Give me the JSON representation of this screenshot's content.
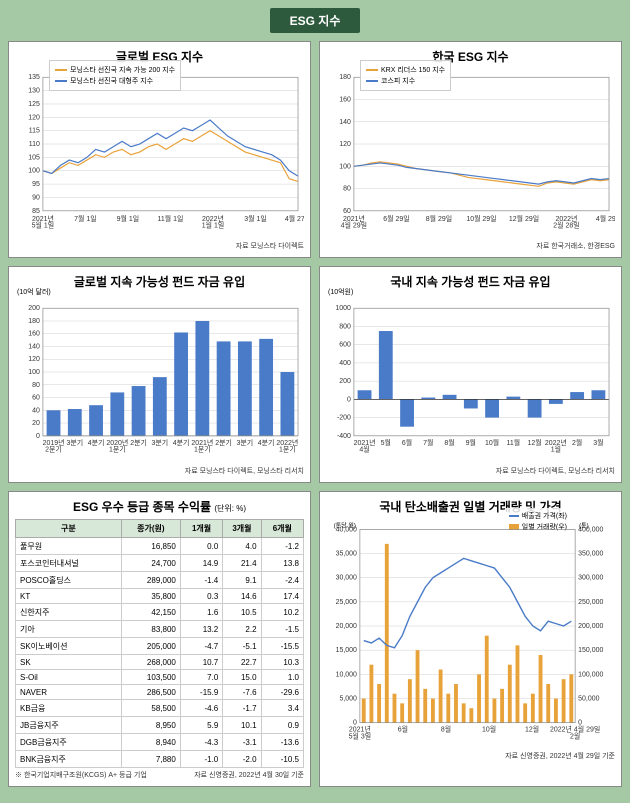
{
  "header": {
    "title": "ESG 지수"
  },
  "global_esg": {
    "title": "글로벌 ESG 지수",
    "type": "line",
    "ylim": [
      85,
      135
    ],
    "ytick_step": 5,
    "xlabels": [
      "2021년\n5월 1일",
      "7월 1일",
      "9월 1일",
      "11월 1일",
      "2022년\n1월 1일",
      "3월 1일",
      "4월 27일"
    ],
    "series": [
      {
        "name": "모닝스타 선진국 지속 가능 200 지수",
        "color": "#e8a23a",
        "values": [
          100,
          99,
          101,
          103,
          102,
          104,
          106,
          105,
          107,
          108,
          106,
          107,
          109,
          110,
          108,
          110,
          112,
          111,
          113,
          115,
          113,
          111,
          109,
          107,
          106,
          105,
          104,
          103,
          97,
          96
        ]
      },
      {
        "name": "모닝스타 선진국 대형주 지수",
        "color": "#4a7bc8",
        "values": [
          100,
          99,
          102,
          104,
          103,
          105,
          108,
          107,
          109,
          111,
          109,
          110,
          112,
          114,
          112,
          114,
          116,
          115,
          117,
          119,
          116,
          113,
          111,
          109,
          108,
          107,
          106,
          104,
          100,
          98
        ]
      }
    ],
    "source": "자료 모닝스타 다이렉트",
    "grid_color": "#d0d0d0",
    "background_color": "#ffffff"
  },
  "korea_esg": {
    "title": "한국 ESG 지수",
    "type": "line",
    "ylim": [
      60,
      180
    ],
    "ytick_step": 20,
    "xlabels": [
      "2021년\n4월 29일",
      "6월 29일",
      "8월 29일",
      "10월 29일",
      "12월 29일",
      "2022년\n2월 28일",
      "4월 29일"
    ],
    "series": [
      {
        "name": "KRX 리더스 150 지수",
        "color": "#e8a23a",
        "values": [
          100,
          101,
          103,
          104,
          103,
          102,
          100,
          98,
          97,
          96,
          95,
          94,
          92,
          90,
          89,
          88,
          87,
          86,
          85,
          84,
          83,
          82,
          85,
          86,
          85,
          84,
          86,
          88,
          87,
          88
        ]
      },
      {
        "name": "코스피 지수",
        "color": "#4a7bc8",
        "values": [
          100,
          101,
          102,
          103,
          102,
          101,
          99,
          98,
          97,
          96,
          95,
          94,
          93,
          92,
          91,
          90,
          89,
          88,
          87,
          86,
          85,
          84,
          86,
          87,
          86,
          85,
          87,
          89,
          88,
          89
        ]
      }
    ],
    "source": "자료 한국거래소, 한경ESG",
    "grid_color": "#d0d0d0"
  },
  "global_fund": {
    "title": "글로벌 지속 가능성 펀드 자금 유입",
    "type": "bar",
    "ytitle": "(10억 달러)",
    "ylim": [
      0,
      200
    ],
    "ytick_step": 20,
    "categories": [
      "2019년\n2분기",
      "3분기",
      "4분기",
      "2020년\n1분기",
      "2분기",
      "3분기",
      "4분기",
      "2021년\n1분기",
      "2분기",
      "3분기",
      "4분기",
      "2022년\n1분기"
    ],
    "values": [
      40,
      42,
      48,
      68,
      78,
      92,
      162,
      180,
      148,
      148,
      152,
      100
    ],
    "bar_color": "#4a7bc8",
    "source": "자료 모닝스타 다이렉트, 모닝스타 리서치",
    "grid_color": "#d0d0d0"
  },
  "korea_fund": {
    "title": "국내 지속 가능성 펀드 자금 유입",
    "type": "bar",
    "ytitle": "(10억원)",
    "ylim": [
      -400,
      1000
    ],
    "ytick_step": 200,
    "categories": [
      "2021년\n4월",
      "5월",
      "6월",
      "7월",
      "8월",
      "9월",
      "10월",
      "11월",
      "12월",
      "2022년\n1월",
      "2월",
      "3월"
    ],
    "values": [
      100,
      750,
      -300,
      20,
      50,
      -100,
      -200,
      30,
      -200,
      -50,
      80,
      100
    ],
    "bar_color": "#4a7bc8",
    "source": "자료 모닝스타 다이렉트, 모닝스타 리서치",
    "grid_color": "#d0d0d0"
  },
  "stock_table": {
    "title": "ESG 우수 등급 종목 수익률",
    "unit": "(단위: %)",
    "columns": [
      "구분",
      "종가(원)",
      "1개월",
      "3개월",
      "6개월"
    ],
    "rows": [
      [
        "풀무원",
        "16,850",
        "0.0",
        "4.0",
        "-1.2"
      ],
      [
        "포스코인터내셔널",
        "24,700",
        "14.9",
        "21.4",
        "13.8"
      ],
      [
        "POSCO홀딩스",
        "289,000",
        "-1.4",
        "9.1",
        "-2.4"
      ],
      [
        "KT",
        "35,800",
        "0.3",
        "14.6",
        "17.4"
      ],
      [
        "신한지주",
        "42,150",
        "1.6",
        "10.5",
        "10.2"
      ],
      [
        "기아",
        "83,800",
        "13.2",
        "2.2",
        "-1.5"
      ],
      [
        "SK이노베이션",
        "205,000",
        "-4.7",
        "-5.1",
        "-15.5"
      ],
      [
        "SK",
        "268,000",
        "10.7",
        "22.7",
        "10.3"
      ],
      [
        "S-Oil",
        "103,500",
        "7.0",
        "15.0",
        "1.0"
      ],
      [
        "NAVER",
        "286,500",
        "-15.9",
        "-7.6",
        "-29.6"
      ],
      [
        "KB금융",
        "58,500",
        "-4.6",
        "-1.7",
        "3.4"
      ],
      [
        "JB금융지주",
        "8,950",
        "5.9",
        "10.1",
        "0.9"
      ],
      [
        "DGB금융지주",
        "8,940",
        "-4.3",
        "-3.1",
        "-13.6"
      ],
      [
        "BNK금융지주",
        "7,880",
        "-1.0",
        "-2.0",
        "-10.5"
      ]
    ],
    "note_left": "※ 한국기업지배구조원(KCGS) A+ 등급 기업",
    "note_right": "자료 신영증권, 2022년 4월 30일 기준",
    "header_bg": "#d8e8d8"
  },
  "carbon": {
    "title": "국내 탄소배출권 일별 거래량 및 가격",
    "type": "dual",
    "y1lim": [
      0,
      40000
    ],
    "y1tick_step": 5000,
    "y1title": "(톤당 원)",
    "y2lim": [
      0,
      400000
    ],
    "y2tick_step": 50000,
    "y2title": "(톤)",
    "xlabels": [
      "2021년\n5월 3일",
      "6월",
      "8월",
      "10월",
      "12월",
      "2022년 4월 29일\n2월"
    ],
    "price": {
      "name": "배출권 가격(좌)",
      "color": "#4a7bc8",
      "values": [
        17000,
        16500,
        17500,
        16000,
        15500,
        18000,
        22000,
        25000,
        28000,
        30000,
        31000,
        32000,
        33000,
        34000,
        33500,
        33000,
        32500,
        32000,
        30000,
        28000,
        25000,
        22000,
        20000,
        19000,
        21000,
        20500,
        20000,
        21000
      ]
    },
    "volume": {
      "name": "일별 거래량(우)",
      "color": "#e8a23a",
      "values": [
        50000,
        120000,
        80000,
        370000,
        60000,
        40000,
        90000,
        150000,
        70000,
        50000,
        110000,
        60000,
        80000,
        40000,
        30000,
        100000,
        180000,
        50000,
        70000,
        120000,
        160000,
        40000,
        60000,
        140000,
        80000,
        50000,
        90000,
        100000
      ]
    },
    "source": "자료 신영증권, 2022년 4월 29일 기준",
    "grid_color": "#d0d0d0"
  }
}
